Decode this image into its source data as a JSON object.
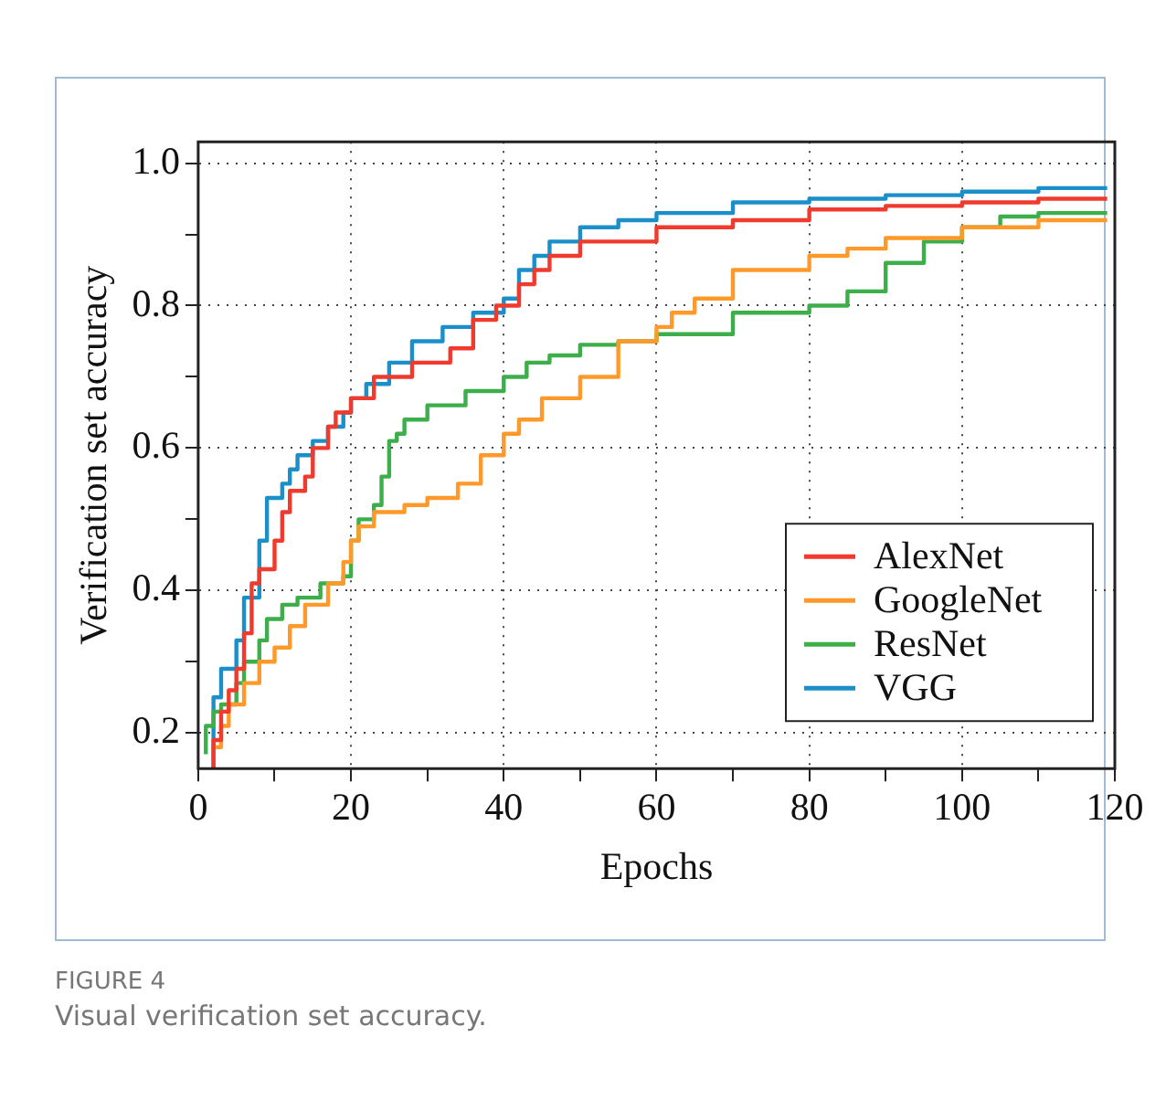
{
  "chart_data": {
    "type": "step",
    "xlabel": "Epochs",
    "ylabel": "Verification set accuracy",
    "annotations": [
      "FIGURE 4",
      "Visual verification set accuracy."
    ],
    "xlim": [
      0,
      120
    ],
    "ylim": [
      0.15,
      1.03
    ],
    "xticks": [
      0,
      {
        "value": 10,
        "label": null
      },
      20,
      {
        "value": 30,
        "label": null
      },
      40,
      {
        "value": 50,
        "label": null
      },
      60,
      {
        "value": 70,
        "label": null
      },
      80,
      {
        "value": 90,
        "label": null
      },
      100,
      {
        "value": 110,
        "label": null
      },
      120
    ],
    "yticks": [
      {
        "value": 0.2,
        "label": "0.2"
      },
      {
        "value": 0.3,
        "label": null
      },
      {
        "value": 0.4,
        "label": "0.4"
      },
      {
        "value": 0.5,
        "label": null
      },
      {
        "value": 0.6,
        "label": "0.6"
      },
      {
        "value": 0.7,
        "label": null
      },
      {
        "value": 0.8,
        "label": "0.8"
      },
      {
        "value": 0.9,
        "label": null
      },
      {
        "value": 1.0,
        "label": "1.0"
      }
    ],
    "grid": true,
    "legend": "bottom right",
    "line_style": "solid",
    "marker": "none",
    "series": [
      {
        "name": "AlexNet",
        "color": "#f03a2e",
        "x": [
          2,
          3,
          4,
          5,
          6,
          7,
          8,
          10,
          11,
          12,
          14,
          15,
          17,
          18,
          20,
          23,
          28,
          33,
          36,
          39,
          42,
          44,
          46,
          50,
          60,
          70,
          80,
          90,
          100,
          110,
          119
        ],
        "values": [
          0.15,
          0.19,
          0.23,
          0.26,
          0.29,
          0.34,
          0.41,
          0.43,
          0.47,
          0.51,
          0.54,
          0.56,
          0.6,
          0.63,
          0.65,
          0.67,
          0.7,
          0.72,
          0.74,
          0.78,
          0.8,
          0.83,
          0.85,
          0.87,
          0.89,
          0.91,
          0.92,
          0.935,
          0.94,
          0.945,
          0.95
        ]
      },
      {
        "name": "GoogleNet",
        "color": "#ff9a2a",
        "x": [
          2,
          3,
          4,
          6,
          8,
          10,
          12,
          14,
          17,
          19,
          20,
          21,
          23,
          27,
          30,
          34,
          37,
          40,
          42,
          45,
          50,
          55,
          60,
          62,
          65,
          70,
          80,
          85,
          90,
          100,
          110,
          119
        ],
        "values": [
          0.15,
          0.18,
          0.21,
          0.24,
          0.27,
          0.3,
          0.32,
          0.35,
          0.38,
          0.41,
          0.44,
          0.47,
          0.49,
          0.51,
          0.52,
          0.53,
          0.55,
          0.59,
          0.62,
          0.64,
          0.67,
          0.7,
          0.75,
          0.77,
          0.79,
          0.81,
          0.85,
          0.87,
          0.88,
          0.895,
          0.91,
          0.92
        ]
      },
      {
        "name": "ResNet",
        "color": "#3cae4a",
        "x": [
          1,
          2,
          3,
          5,
          6,
          8,
          9,
          11,
          13,
          16,
          19,
          20,
          21,
          23,
          24,
          25,
          26,
          27,
          30,
          35,
          40,
          43,
          46,
          50,
          55,
          60,
          70,
          80,
          85,
          90,
          95,
          100,
          105,
          110,
          119
        ],
        "values": [
          0.17,
          0.21,
          0.23,
          0.24,
          0.27,
          0.3,
          0.33,
          0.36,
          0.38,
          0.39,
          0.41,
          0.42,
          0.47,
          0.5,
          0.52,
          0.56,
          0.61,
          0.62,
          0.64,
          0.66,
          0.68,
          0.7,
          0.72,
          0.73,
          0.745,
          0.75,
          0.76,
          0.79,
          0.8,
          0.82,
          0.86,
          0.89,
          0.91,
          0.925,
          0.93
        ]
      },
      {
        "name": "VGG",
        "color": "#1a8fc9",
        "x": [
          2,
          3,
          5,
          6,
          8,
          9,
          11,
          12,
          13,
          15,
          17,
          19,
          20,
          22,
          25,
          28,
          32,
          36,
          40,
          42,
          44,
          46,
          50,
          55,
          60,
          70,
          80,
          90,
          100,
          110,
          119
        ],
        "values": [
          0.15,
          0.25,
          0.29,
          0.33,
          0.39,
          0.47,
          0.53,
          0.55,
          0.57,
          0.59,
          0.61,
          0.63,
          0.65,
          0.67,
          0.69,
          0.72,
          0.75,
          0.77,
          0.79,
          0.81,
          0.85,
          0.87,
          0.89,
          0.91,
          0.92,
          0.93,
          0.945,
          0.95,
          0.955,
          0.96,
          0.965
        ]
      }
    ]
  }
}
